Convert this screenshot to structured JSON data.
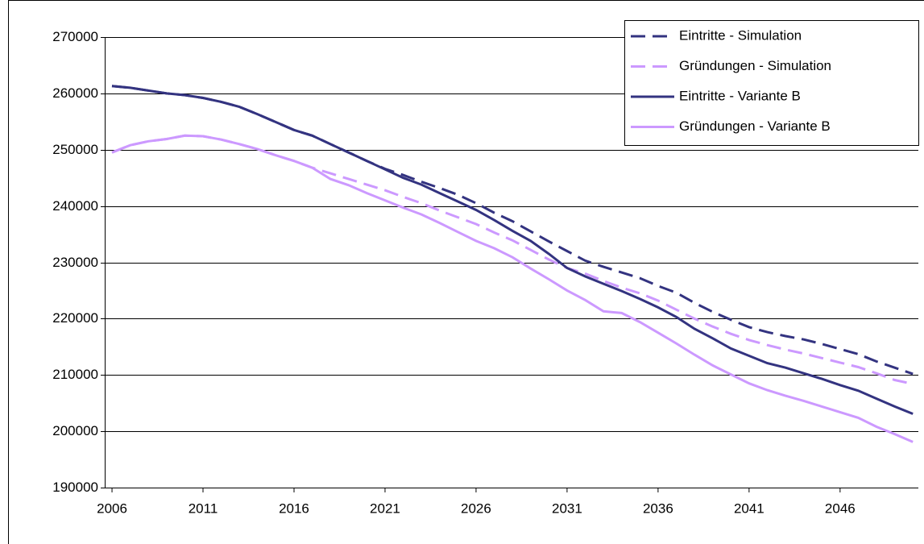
{
  "chart_data": {
    "type": "line",
    "x": [
      2006,
      2007,
      2008,
      2009,
      2010,
      2011,
      2012,
      2013,
      2014,
      2015,
      2016,
      2017,
      2018,
      2019,
      2020,
      2021,
      2022,
      2023,
      2024,
      2025,
      2026,
      2027,
      2028,
      2029,
      2030,
      2031,
      2032,
      2033,
      2034,
      2035,
      2036,
      2037,
      2038,
      2039,
      2040,
      2041,
      2042,
      2043,
      2044,
      2045,
      2046,
      2047,
      2048,
      2049,
      2050
    ],
    "xlim": [
      2005.6,
      2050.3
    ],
    "xticks": [
      2006,
      2011,
      2016,
      2021,
      2026,
      2031,
      2036,
      2041,
      2046
    ],
    "ylim": [
      190000,
      270000
    ],
    "yticks": [
      190000,
      200000,
      210000,
      220000,
      230000,
      240000,
      250000,
      260000,
      270000
    ],
    "grid": true,
    "legend": "upper right",
    "series": [
      {
        "name": "Eintritte - Simulation",
        "color": "#333380",
        "dashed": true,
        "values": [
          261300,
          261000,
          260500,
          260000,
          259700,
          259200,
          258500,
          257600,
          256300,
          254900,
          253500,
          252500,
          251000,
          249500,
          248000,
          246600,
          245500,
          244300,
          243200,
          242000,
          240500,
          238800,
          237300,
          235500,
          233700,
          232000,
          230300,
          229200,
          228200,
          227200,
          225800,
          224600,
          222800,
          221200,
          219800,
          218500,
          217600,
          216900,
          216300,
          215500,
          214600,
          213700,
          212400,
          211300,
          210200
        ]
      },
      {
        "name": "Gründungen - Simulation",
        "color": "#cc99ff",
        "dashed": true,
        "values": [
          249500,
          250800,
          251500,
          251900,
          252500,
          252400,
          251800,
          251000,
          250100,
          249000,
          248000,
          246800,
          245800,
          244800,
          243800,
          242800,
          241600,
          240500,
          239200,
          238000,
          236800,
          235300,
          233900,
          232200,
          230500,
          229000,
          228000,
          226700,
          225500,
          224500,
          223200,
          221600,
          220000,
          218600,
          217300,
          216200,
          215300,
          214500,
          213800,
          213000,
          212200,
          211400,
          210300,
          209100,
          208400
        ]
      },
      {
        "name": "Eintritte - Variante B",
        "color": "#333380",
        "dashed": false,
        "values": [
          261300,
          261000,
          260500,
          260000,
          259700,
          259200,
          258500,
          257600,
          256300,
          254900,
          253500,
          252500,
          251000,
          249500,
          248000,
          246500,
          245000,
          243800,
          242300,
          240800,
          239300,
          237500,
          235600,
          233800,
          231500,
          229000,
          227500,
          226200,
          224900,
          223500,
          222000,
          220300,
          218200,
          216500,
          214700,
          213400,
          212100,
          211300,
          210300,
          209300,
          208200,
          207200,
          205800,
          204400,
          203100
        ]
      },
      {
        "name": "Gründungen - Variante B",
        "color": "#cc99ff",
        "dashed": false,
        "values": [
          249500,
          250800,
          251500,
          251900,
          252500,
          252400,
          251800,
          251000,
          250100,
          249000,
          248000,
          246800,
          244800,
          243700,
          242300,
          241000,
          239700,
          238500,
          237000,
          235400,
          233800,
          232500,
          230900,
          228900,
          227000,
          225000,
          223300,
          221300,
          221000,
          219400,
          217500,
          215600,
          213600,
          211700,
          210100,
          208500,
          207300,
          206300,
          205400,
          204400,
          203400,
          202400,
          200800,
          199500,
          198100
        ]
      }
    ]
  }
}
